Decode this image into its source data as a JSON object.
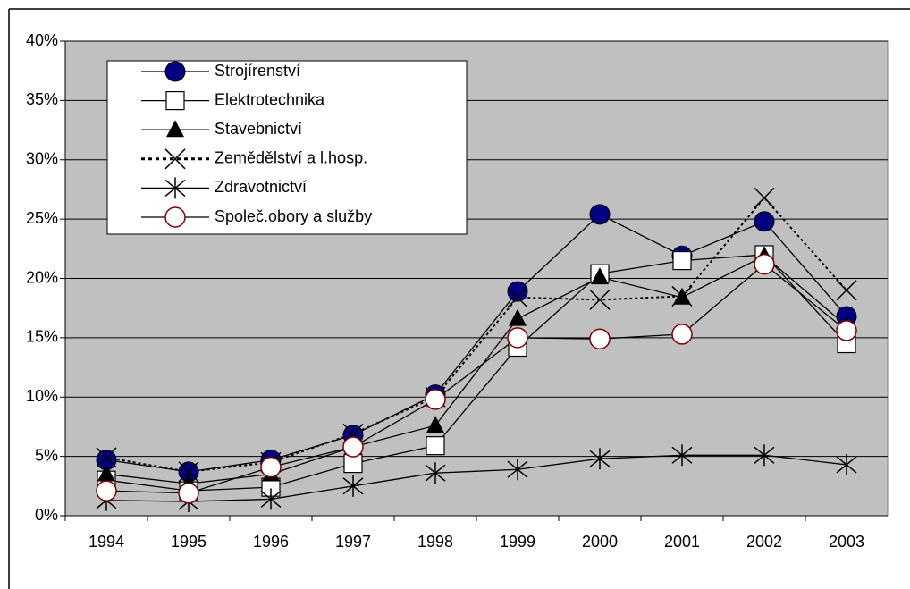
{
  "chart_data": {
    "type": "line",
    "categories": [
      "1994",
      "1995",
      "1996",
      "1997",
      "1998",
      "1999",
      "2000",
      "2001",
      "2002",
      "2003"
    ],
    "ylim": [
      0,
      40
    ],
    "yticks": [
      {
        "value": 0,
        "label": "0%"
      },
      {
        "value": 5,
        "label": "5%"
      },
      {
        "value": 10,
        "label": "10%"
      },
      {
        "value": 15,
        "label": "15%"
      },
      {
        "value": 20,
        "label": "20%"
      },
      {
        "value": 25,
        "label": "25%"
      },
      {
        "value": 30,
        "label": "30%"
      },
      {
        "value": 35,
        "label": "35%"
      },
      {
        "value": 40,
        "label": "40%"
      }
    ],
    "grid": true,
    "legend": "upper left",
    "series": [
      {
        "name": "Strojírenství",
        "color": "#000080",
        "marker": "circle",
        "values": [
          4.7,
          3.7,
          4.7,
          6.8,
          10.2,
          18.9,
          25.4,
          21.9,
          24.8,
          16.8
        ]
      },
      {
        "name": "Elektrotechnika",
        "color": "#ffffff",
        "marker": "square",
        "values": [
          3.0,
          2.1,
          2.4,
          4.4,
          5.9,
          14.2,
          20.4,
          21.5,
          22.0,
          14.5
        ]
      },
      {
        "name": "Stavebnictví",
        "color": "#000000",
        "marker": "triangle",
        "values": [
          3.5,
          2.7,
          3.5,
          5.8,
          7.6,
          16.6,
          20.1,
          18.4,
          21.9,
          16.0
        ]
      },
      {
        "name": "Zemědělství a l.hosp.",
        "color": "#000000",
        "marker": "x",
        "dash": true,
        "values": [
          4.9,
          3.7,
          4.5,
          6.9,
          10.0,
          18.4,
          18.2,
          18.5,
          26.8,
          19.0
        ]
      },
      {
        "name": "Zdravotnictví",
        "color": "#000000",
        "marker": "star",
        "values": [
          1.3,
          1.2,
          1.4,
          2.5,
          3.6,
          3.9,
          4.8,
          5.1,
          5.1,
          4.3
        ]
      },
      {
        "name": "Společ.obory a služby",
        "color": "#800000",
        "marker": "ring",
        "values": [
          2.1,
          1.9,
          4.1,
          5.8,
          9.8,
          15.0,
          14.9,
          15.3,
          21.2,
          15.6
        ]
      }
    ]
  }
}
